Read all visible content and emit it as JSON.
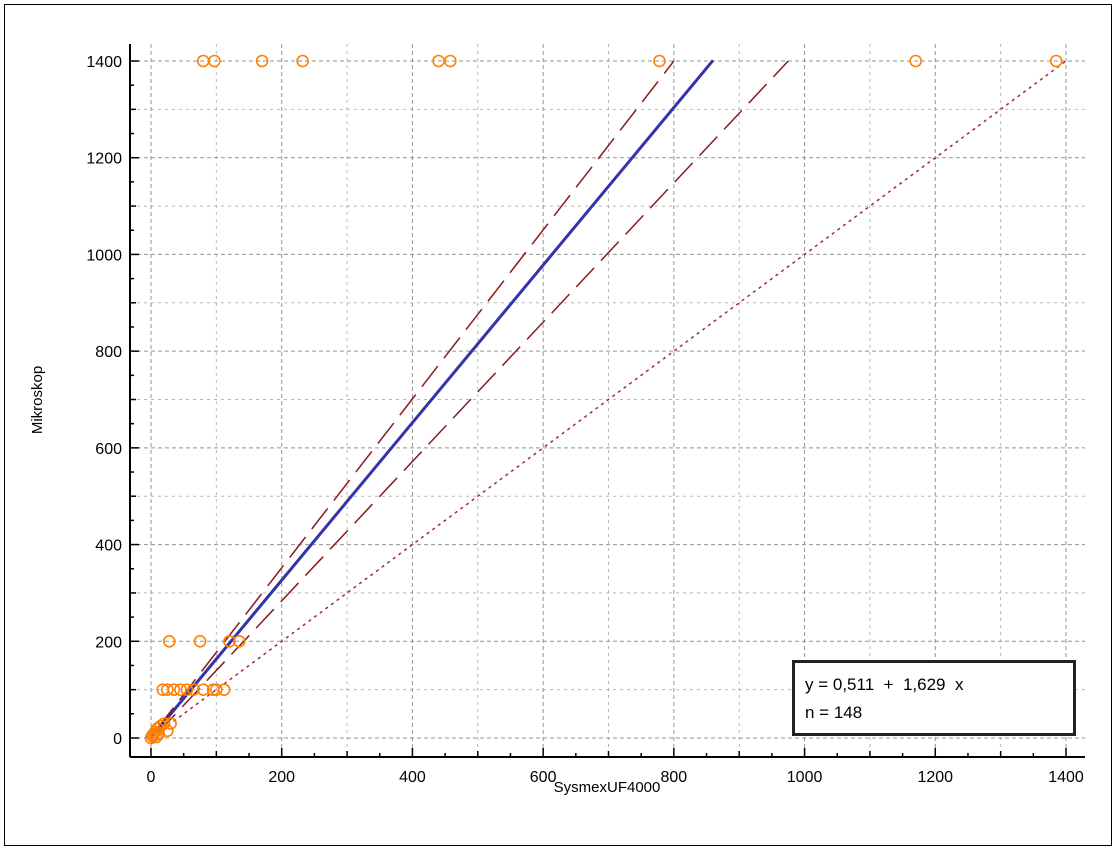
{
  "chart_data": {
    "type": "scatter",
    "title": "",
    "xlabel": "SysmexUF4000",
    "ylabel": "Mikroskop",
    "xlim": [
      -20,
      1420
    ],
    "ylim": [
      -40,
      1440
    ],
    "xticks": [
      0,
      200,
      400,
      600,
      800,
      1000,
      1200,
      1400
    ],
    "yticks": [
      0,
      200,
      400,
      600,
      800,
      1000,
      1200,
      1400
    ],
    "grid": true,
    "colors": {
      "points": "#ff7f00",
      "regression": "#3333aa",
      "confidence": "#8b1a1a",
      "identity": "#a52a2a",
      "grid": "#888888"
    },
    "series": [
      {
        "type": "scatter",
        "points": [
          [
            0,
            0
          ],
          [
            2,
            5
          ],
          [
            4,
            8
          ],
          [
            6,
            12
          ],
          [
            10,
            20
          ],
          [
            15,
            25
          ],
          [
            20,
            30
          ],
          [
            25,
            15
          ],
          [
            30,
            30
          ],
          [
            8,
            2
          ],
          [
            3,
            3
          ],
          [
            12,
            8
          ],
          [
            18,
            100
          ],
          [
            25,
            100
          ],
          [
            35,
            100
          ],
          [
            45,
            100
          ],
          [
            55,
            100
          ],
          [
            65,
            100
          ],
          [
            80,
            100
          ],
          [
            95,
            100
          ],
          [
            100,
            100
          ],
          [
            112,
            100
          ],
          [
            28,
            200
          ],
          [
            75,
            200
          ],
          [
            120,
            200
          ],
          [
            135,
            200
          ],
          [
            80,
            1400
          ],
          [
            97,
            1400
          ],
          [
            170,
            1400
          ],
          [
            232,
            1400
          ],
          [
            440,
            1400
          ],
          [
            458,
            1400
          ],
          [
            778,
            1400
          ],
          [
            1170,
            1400
          ],
          [
            1385,
            1400
          ]
        ]
      },
      {
        "type": "line",
        "role": "regression",
        "intercept": 0.511,
        "slope": 1.629,
        "x_range": [
          0,
          860
        ]
      },
      {
        "type": "line",
        "role": "upper-confidence",
        "points": [
          [
            10,
            20
          ],
          [
            800,
            1400
          ]
        ]
      },
      {
        "type": "line",
        "role": "lower-confidence",
        "points": [
          [
            10,
            10
          ],
          [
            975,
            1400
          ]
        ]
      },
      {
        "type": "line",
        "role": "identity",
        "points": [
          [
            0,
            0
          ],
          [
            1400,
            1400
          ]
        ]
      }
    ],
    "annotation": {
      "equation": "y = 0,511  +  1,629  x",
      "n": "n = 148"
    }
  }
}
